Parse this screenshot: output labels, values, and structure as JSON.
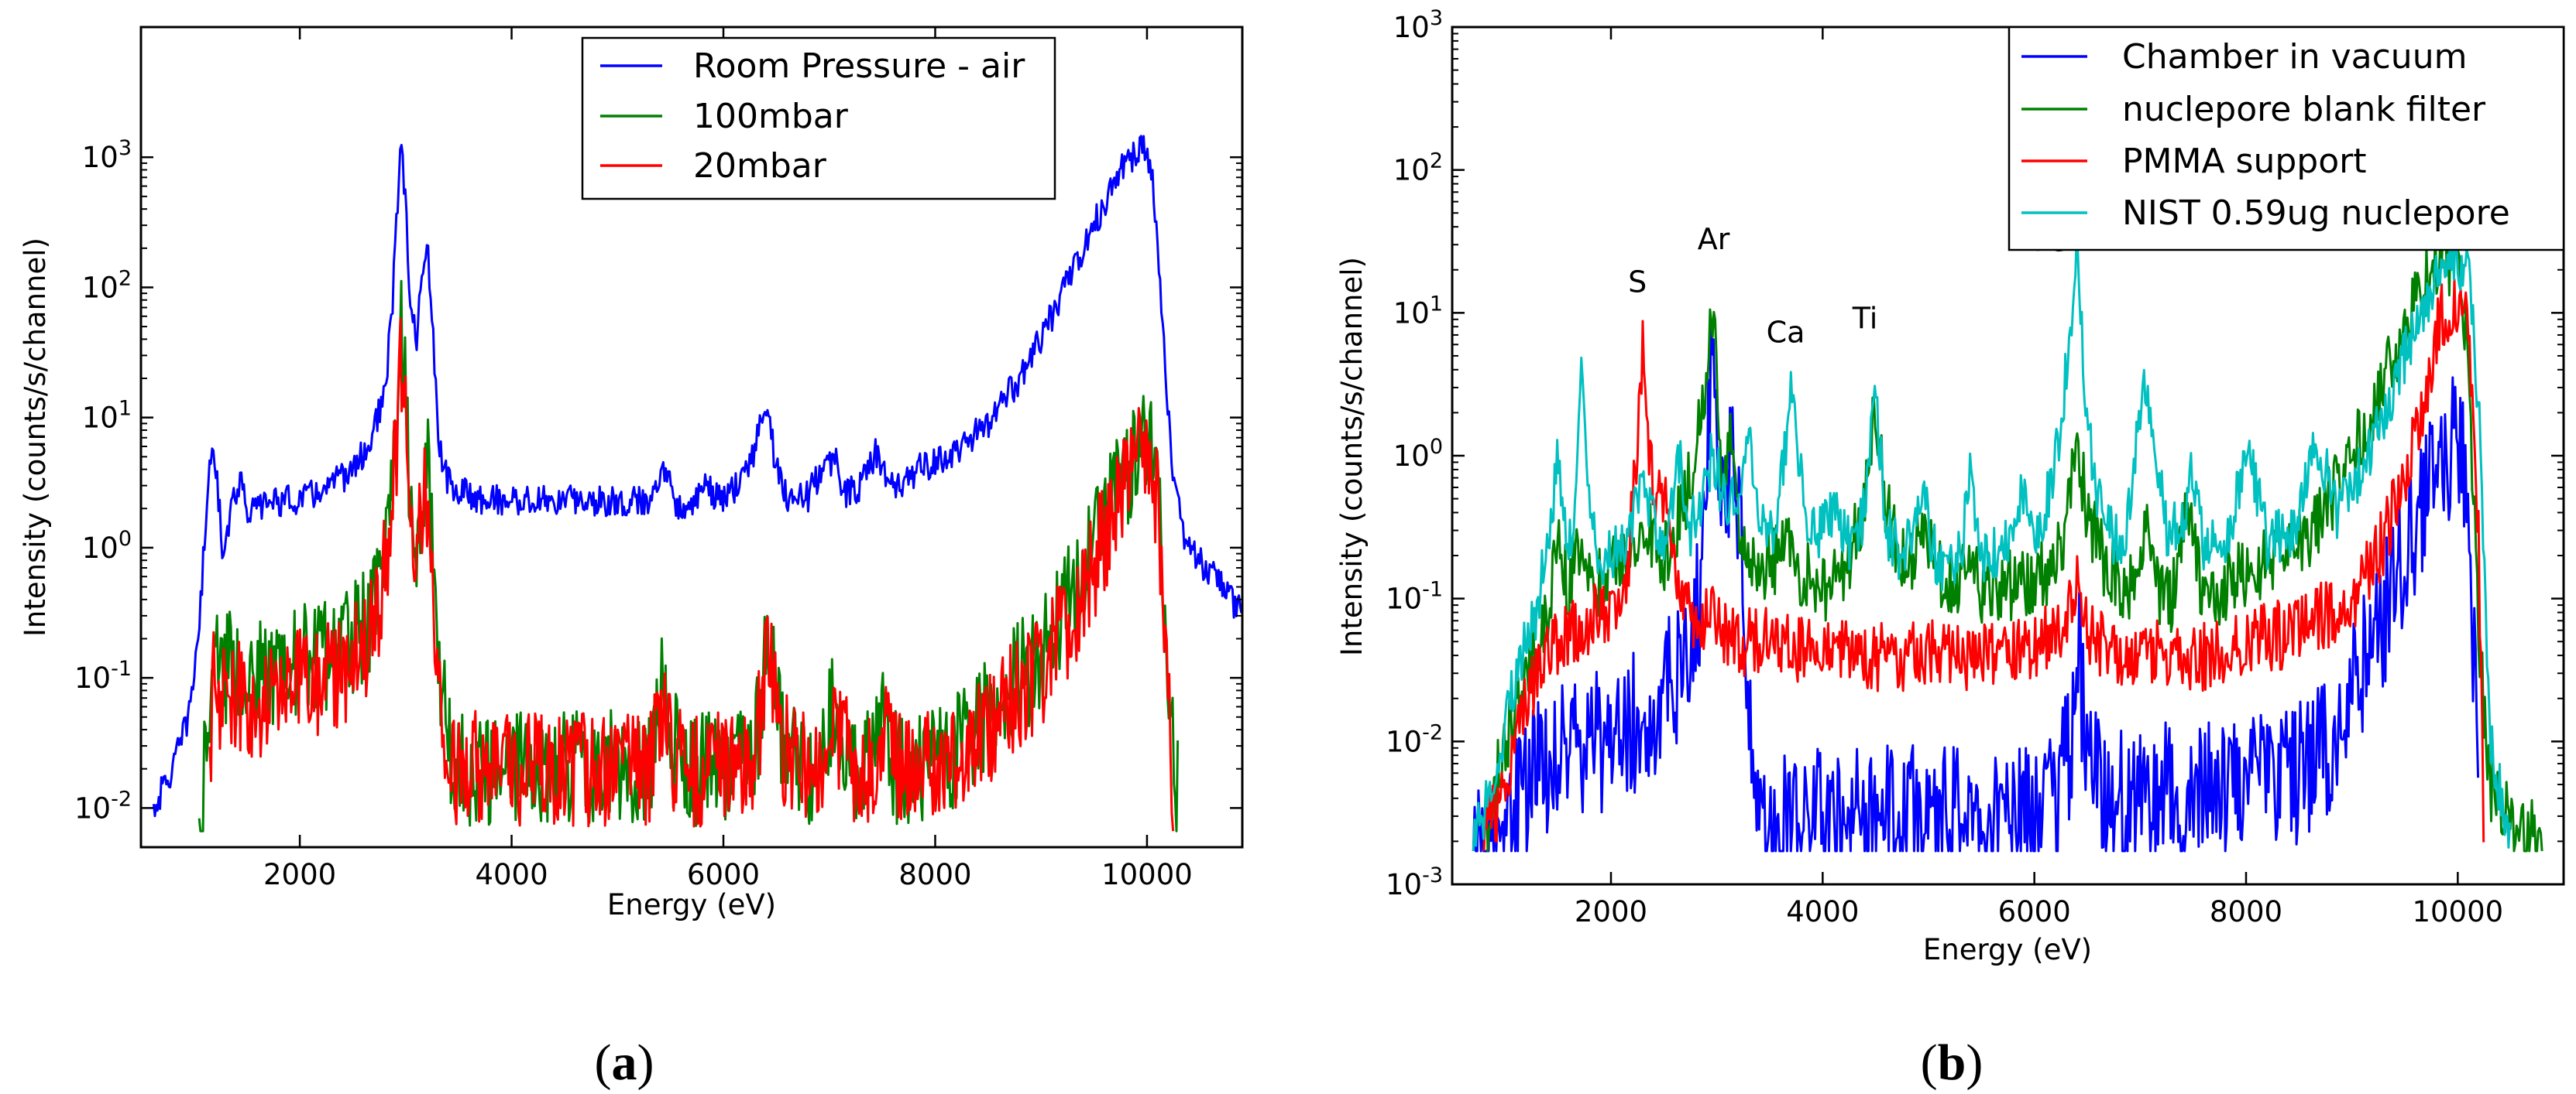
{
  "chart_data": [
    {
      "id": "a",
      "type": "line",
      "panel_label": {
        "open": "(",
        "letter": "a",
        "close": ")"
      },
      "xlabel": "Energy (eV)",
      "ylabel": "Intensity (counts/s/channel)",
      "xlim": [
        500,
        10900
      ],
      "ylim": [
        0.005,
        10000
      ],
      "yscale": "log",
      "xticks": [
        2000,
        4000,
        6000,
        8000,
        10000
      ],
      "xtick_labels": [
        "2000",
        "4000",
        "6000",
        "8000",
        "10000"
      ],
      "yticks": [
        0.01,
        0.1,
        1,
        10,
        100,
        1000
      ],
      "ytick_labels": [
        {
          "base": "10",
          "exp": "-2"
        },
        {
          "base": "10",
          "exp": "-1"
        },
        {
          "base": "10",
          "exp": "0"
        },
        {
          "base": "10",
          "exp": "1"
        },
        {
          "base": "10",
          "exp": "2"
        },
        {
          "base": "10",
          "exp": "3"
        }
      ],
      "legend_position": "top-right",
      "series": [
        {
          "name": "Room Pressure - air",
          "color": "#0000ff",
          "noise": 0.12,
          "x": [
            620,
            800,
            950,
            1050,
            1120,
            1180,
            1220,
            1270,
            1320,
            1380,
            1450,
            1520,
            1600,
            1700,
            1900,
            2100,
            2300,
            2500,
            2650,
            2800,
            2870,
            2920,
            2960,
            3000,
            3050,
            3100,
            3150,
            3200,
            3250,
            3300,
            3350,
            3450,
            3700,
            4000,
            4500,
            5000,
            5300,
            5420,
            5550,
            5700,
            5850,
            5950,
            6050,
            6200,
            6300,
            6400,
            6500,
            6600,
            6800,
            6950,
            7050,
            7150,
            7300,
            7450,
            7550,
            7700,
            7850,
            8000,
            8250,
            8500,
            8800,
            9000,
            9200,
            9400,
            9600,
            9750,
            9850,
            9950,
            10050,
            10150,
            10250,
            10350,
            10500,
            10700,
            10900
          ],
          "y": [
            0.01,
            0.02,
            0.05,
            0.25,
            2.0,
            8.0,
            3.0,
            1.0,
            1.5,
            2.5,
            3.5,
            1.8,
            2.0,
            2.3,
            2.3,
            2.5,
            3.0,
            4.0,
            6.0,
            15,
            60,
            400,
            1400,
            400,
            60,
            40,
            100,
            220,
            60,
            8,
            4,
            2.8,
            2.4,
            2.3,
            2.3,
            2.3,
            2.2,
            4.5,
            2.2,
            2.2,
            3.0,
            2.3,
            2.5,
            3.5,
            6.0,
            14,
            4.0,
            2.5,
            2.5,
            4.2,
            5.0,
            2.6,
            3.0,
            5.5,
            3.0,
            3.0,
            4.2,
            4.5,
            6.0,
            9,
            20,
            40,
            90,
            200,
            450,
            800,
            950,
            1300,
            700,
            50,
            3,
            1.2,
            0.8,
            0.5,
            0.32
          ]
        },
        {
          "name": "100mbar",
          "color": "#008000",
          "noise": 0.45,
          "floor": 0.007,
          "x": [
            1050,
            1150,
            1200,
            1230,
            1300,
            1400,
            1600,
            1800,
            2000,
            2200,
            2400,
            2600,
            2750,
            2850,
            2920,
            2960,
            3000,
            3050,
            3100,
            3150,
            3200,
            3250,
            3300,
            3380,
            3450,
            3600,
            4000,
            4500,
            5000,
            5300,
            5420,
            5500,
            5700,
            6000,
            6300,
            6420,
            6550,
            6700,
            6900,
            7050,
            7200,
            7400,
            7500,
            7600,
            7800,
            8000,
            8200,
            8500,
            8800,
            9000,
            9200,
            9400,
            9600,
            9800,
            9900,
            10000,
            10100,
            10200,
            10300
          ],
          "y": [
            0.006,
            0.1,
            0.3,
            0.08,
            0.12,
            0.12,
            0.1,
            0.12,
            0.13,
            0.15,
            0.18,
            0.25,
            0.45,
            1.5,
            10,
            50,
            15,
            2.0,
            1.1,
            3.0,
            5.5,
            1.5,
            0.2,
            0.05,
            0.02,
            0.02,
            0.02,
            0.02,
            0.02,
            0.02,
            0.08,
            0.03,
            0.02,
            0.02,
            0.03,
            0.18,
            0.04,
            0.02,
            0.02,
            0.06,
            0.02,
            0.02,
            0.06,
            0.02,
            0.02,
            0.02,
            0.03,
            0.05,
            0.1,
            0.15,
            0.3,
            0.7,
            1.5,
            3.5,
            5.5,
            9.0,
            3.0,
            0.05,
            0.01
          ]
        },
        {
          "name": "20mbar",
          "color": "#ff0000",
          "noise": 0.45,
          "floor": 0.007,
          "x": [
            1150,
            1200,
            1230,
            1300,
            1400,
            1600,
            1800,
            2000,
            2200,
            2400,
            2600,
            2750,
            2850,
            2920,
            2960,
            3000,
            3050,
            3100,
            3150,
            3200,
            3250,
            3300,
            3380,
            3450,
            3600,
            4000,
            4500,
            5000,
            5300,
            5420,
            5500,
            5700,
            6000,
            6300,
            6420,
            6550,
            6700,
            6900,
            7050,
            7200,
            7400,
            7500,
            7600,
            7800,
            8000,
            8200,
            8500,
            8800,
            9000,
            9200,
            9400,
            9600,
            9800,
            9900,
            10000,
            10100,
            10200,
            10250
          ],
          "y": [
            0.02,
            0.2,
            0.05,
            0.08,
            0.08,
            0.06,
            0.08,
            0.09,
            0.1,
            0.12,
            0.18,
            0.35,
            1.2,
            8,
            28,
            8,
            1.5,
            0.7,
            1.6,
            2.8,
            0.8,
            0.12,
            0.04,
            0.02,
            0.02,
            0.02,
            0.02,
            0.02,
            0.02,
            0.06,
            0.025,
            0.02,
            0.02,
            0.025,
            0.15,
            0.03,
            0.02,
            0.02,
            0.05,
            0.02,
            0.02,
            0.05,
            0.02,
            0.02,
            0.02,
            0.025,
            0.04,
            0.08,
            0.12,
            0.22,
            0.5,
            1.2,
            3.0,
            4.5,
            6.0,
            2.0,
            0.1,
            0.01
          ]
        }
      ]
    },
    {
      "id": "b",
      "type": "line",
      "panel_label": {
        "open": "(",
        "letter": "b",
        "close": ")"
      },
      "xlabel": "Energy (eV)",
      "ylabel": "Intensity (counts/s/channel)",
      "xlim": [
        500,
        11000
      ],
      "ylim": [
        0.001,
        1000
      ],
      "yscale": "log",
      "xticks": [
        2000,
        4000,
        6000,
        8000,
        10000
      ],
      "xtick_labels": [
        "2000",
        "4000",
        "6000",
        "8000",
        "10000"
      ],
      "yticks": [
        0.001,
        0.01,
        0.1,
        1,
        10,
        100,
        1000
      ],
      "ytick_labels": [
        {
          "base": "10",
          "exp": "-3"
        },
        {
          "base": "10",
          "exp": "-2"
        },
        {
          "base": "10",
          "exp": "-1"
        },
        {
          "base": "10",
          "exp": "0"
        },
        {
          "base": "10",
          "exp": "1"
        },
        {
          "base": "10",
          "exp": "2"
        },
        {
          "base": "10",
          "exp": "3"
        }
      ],
      "legend_position": "top-right",
      "annotations": [
        {
          "text": "S",
          "x": 2250,
          "y": 14
        },
        {
          "text": "Ar",
          "x": 2970,
          "y": 28
        },
        {
          "text": "Ca",
          "x": 3650,
          "y": 6.2
        },
        {
          "text": "Ti",
          "x": 4400,
          "y": 7.8
        },
        {
          "text": "Fe",
          "x": 6150,
          "y": 27
        }
      ],
      "series": [
        {
          "name": "Chamber in vacuum",
          "color": "#0000ff",
          "noise": 0.5,
          "floor": 0.0018,
          "x": [
            700,
            900,
            1100,
            1300,
            1500,
            1700,
            1900,
            2100,
            2300,
            2500,
            2700,
            2850,
            2950,
            3050,
            3150,
            3250,
            3300,
            3350,
            3500,
            4000,
            4500,
            5000,
            5500,
            6000,
            6200,
            6350,
            6420,
            6500,
            6700,
            7000,
            7500,
            8000,
            8500,
            8800,
            9000,
            9200,
            9400,
            9600,
            9800,
            9900,
            10000,
            10100,
            10200
          ],
          "y": [
            0.0015,
            0.0015,
            0.004,
            0.006,
            0.008,
            0.009,
            0.01,
            0.012,
            0.015,
            0.02,
            0.04,
            0.1,
            5.5,
            0.7,
            0.8,
            0.15,
            0.02,
            0.004,
            0.003,
            0.003,
            0.003,
            0.003,
            0.003,
            0.003,
            0.004,
            0.01,
            0.04,
            0.006,
            0.004,
            0.004,
            0.005,
            0.005,
            0.006,
            0.01,
            0.02,
            0.05,
            0.12,
            0.35,
            0.7,
            1.0,
            1.3,
            0.5,
            0.003
          ]
        },
        {
          "name": "nuclepore blank filter",
          "color": "#008000",
          "noise": 0.25,
          "floor": 0.0018,
          "x": [
            800,
            1000,
            1200,
            1400,
            1500,
            1600,
            1700,
            1800,
            2000,
            2200,
            2300,
            2400,
            2500,
            2600,
            2700,
            2800,
            2900,
            2950,
            3000,
            3050,
            3100,
            3150,
            3200,
            3300,
            3450,
            3600,
            3700,
            3800,
            4000,
            4200,
            4400,
            4500,
            4600,
            4800,
            4950,
            5100,
            5300,
            5400,
            5500,
            5700,
            5900,
            6100,
            6300,
            6400,
            6500,
            6700,
            6900,
            7050,
            7200,
            7300,
            7450,
            7600,
            7800,
            8000,
            8300,
            8600,
            8800,
            9000,
            9200,
            9400,
            9600,
            9800,
            9900,
            10000,
            10100,
            10200,
            10300,
            10500,
            10800
          ],
          "y": [
            0.002,
            0.01,
            0.03,
            0.08,
            0.25,
            0.12,
            0.25,
            0.12,
            0.15,
            0.2,
            0.3,
            0.25,
            0.2,
            0.3,
            0.5,
            1.2,
            4,
            13,
            3.5,
            0.5,
            1.2,
            1.5,
            0.4,
            0.15,
            0.15,
            0.2,
            0.25,
            0.15,
            0.12,
            0.15,
            0.5,
            2.2,
            0.4,
            0.15,
            0.35,
            0.15,
            0.12,
            0.2,
            0.12,
            0.12,
            0.13,
            0.15,
            0.3,
            1.2,
            0.4,
            0.15,
            0.12,
            0.3,
            0.1,
            0.1,
            0.45,
            0.1,
            0.12,
            0.15,
            0.2,
            0.3,
            0.5,
            1.0,
            2.0,
            5.0,
            12,
            23,
            24,
            22,
            5,
            0.05,
            0.005,
            0.003,
            0.002
          ]
        },
        {
          "name": "PMMA support",
          "color": "#ff0000",
          "noise": 0.25,
          "floor": 0.0018,
          "x": [
            800,
            1000,
            1200,
            1400,
            1600,
            1800,
            2000,
            2150,
            2250,
            2300,
            2350,
            2450,
            2500,
            2550,
            2650,
            2800,
            2950,
            3000,
            3100,
            3200,
            3500,
            4000,
            4500,
            5000,
            5500,
            6000,
            6300,
            6420,
            6550,
            6800,
            7200,
            7600,
            8000,
            8500,
            9000,
            9300,
            9500,
            9700,
            9850,
            10000,
            10100,
            10200,
            10250
          ],
          "y": [
            0.002,
            0.005,
            0.02,
            0.04,
            0.06,
            0.07,
            0.09,
            0.15,
            1.0,
            5.5,
            1.0,
            0.5,
            0.6,
            0.3,
            0.12,
            0.06,
            0.1,
            0.07,
            0.06,
            0.05,
            0.05,
            0.04,
            0.04,
            0.04,
            0.04,
            0.045,
            0.06,
            0.14,
            0.05,
            0.04,
            0.04,
            0.04,
            0.05,
            0.06,
            0.1,
            0.25,
            0.8,
            3.0,
            10,
            13,
            8,
            0.2,
            0.002
          ]
        },
        {
          "name": "NIST 0.59ug nuclepore",
          "color": "#00c0c0",
          "noise": 0.2,
          "floor": 0.0018,
          "x": [
            700,
            900,
            1100,
            1300,
            1450,
            1500,
            1550,
            1650,
            1720,
            1800,
            1900,
            2000,
            2200,
            2300,
            2350,
            2500,
            2600,
            2650,
            2750,
            2850,
            2950,
            3000,
            3050,
            3200,
            3300,
            3400,
            3550,
            3700,
            3850,
            4000,
            4100,
            4250,
            4400,
            4500,
            4600,
            4750,
            4950,
            5100,
            5300,
            5400,
            5500,
            5700,
            5900,
            6000,
            6100,
            6250,
            6400,
            6500,
            6650,
            6850,
            7050,
            7250,
            7400,
            7480,
            7600,
            7800,
            8000,
            8200,
            8450,
            8650,
            8850,
            9000,
            9200,
            9400,
            9600,
            9800,
            9900,
            10000,
            10100,
            10200,
            10300,
            10500
          ],
          "y": [
            0.002,
            0.005,
            0.03,
            0.08,
            0.5,
            0.9,
            0.3,
            0.2,
            4.0,
            0.4,
            0.15,
            0.2,
            0.3,
            0.8,
            0.4,
            0.25,
            0.6,
            1.0,
            0.3,
            0.5,
            1.0,
            0.9,
            0.5,
            0.5,
            1.5,
            0.3,
            0.3,
            2.8,
            0.3,
            0.3,
            0.4,
            0.25,
            0.4,
            2.8,
            0.3,
            0.2,
            0.5,
            0.15,
            0.2,
            0.8,
            0.2,
            0.2,
            0.6,
            0.25,
            0.4,
            1.5,
            27,
            1.5,
            0.3,
            0.25,
            3.5,
            0.3,
            0.3,
            0.8,
            0.25,
            0.2,
            1.2,
            0.25,
            0.3,
            1.5,
            0.4,
            0.6,
            1.2,
            3.0,
            8,
            18,
            23,
            24,
            20,
            2,
            0.01,
            0.002
          ]
        }
      ]
    }
  ]
}
